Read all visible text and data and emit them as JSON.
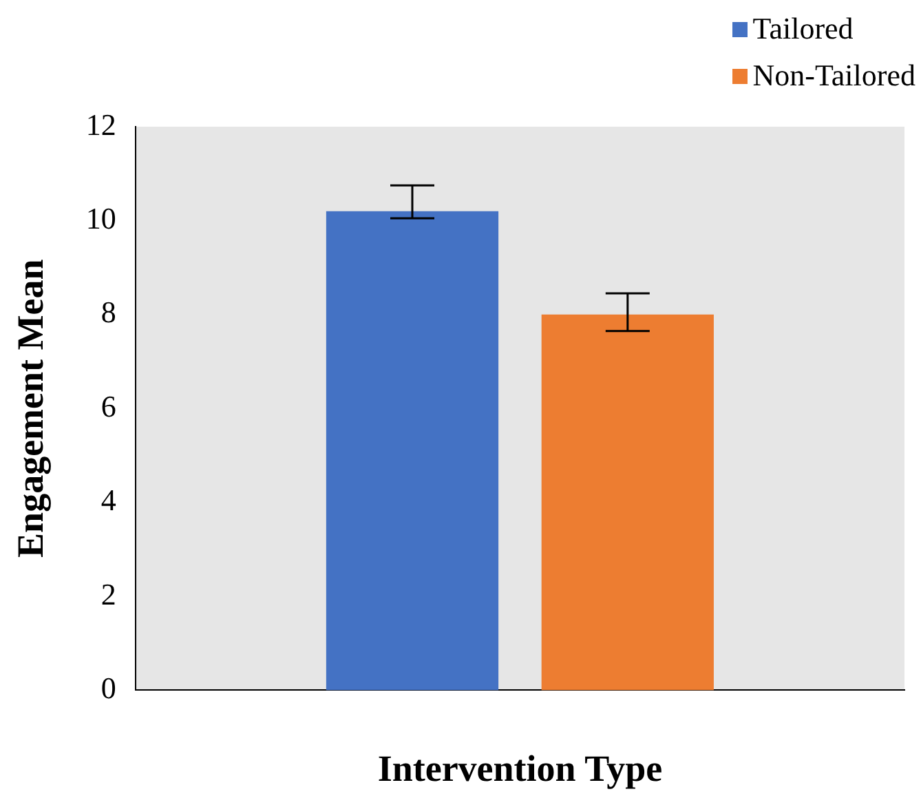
{
  "chart_data": {
    "type": "bar",
    "xlabel": "Intervention Type",
    "ylabel": "Engagement Mean",
    "categories": [
      null
    ],
    "series": [
      {
        "name": "Tailored",
        "color": "#4472c4",
        "values": [
          10.2
        ],
        "errors": [
          [
            10.05,
            10.75
          ]
        ]
      },
      {
        "name": "Non-Tailored",
        "color": "#ed7d31",
        "values": [
          8.0
        ],
        "errors": [
          [
            7.65,
            8.45
          ]
        ]
      }
    ],
    "ylim": [
      0,
      12
    ],
    "yticks": [
      0,
      2,
      4,
      6,
      8,
      10,
      12
    ],
    "grid": false,
    "legend": "top right"
  }
}
